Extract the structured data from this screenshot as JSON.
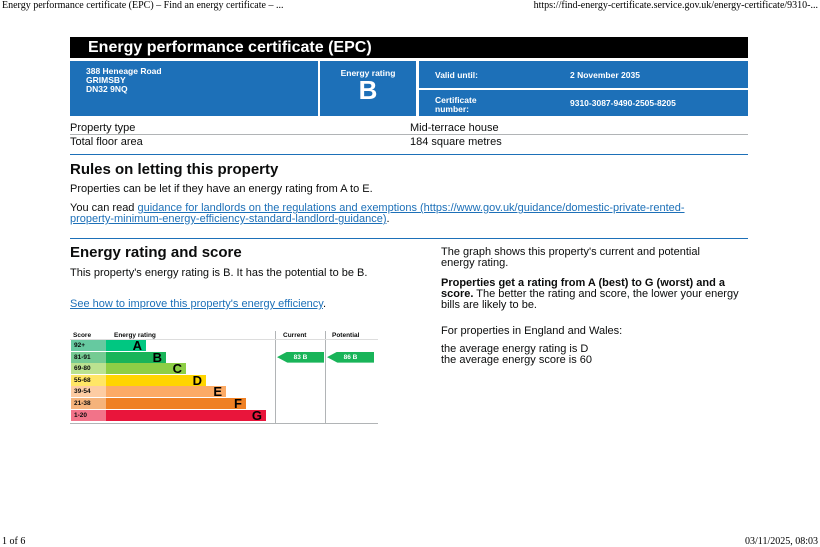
{
  "print_header": {
    "title": "Energy performance certificate (EPC) – Find an energy certificate – ...",
    "url": "https://find-energy-certificate.service.gov.uk/energy-certificate/9310-..."
  },
  "print_footer": {
    "page": "1 of 6",
    "datetime": "03/11/2025, 08:03"
  },
  "title": "Energy performance certificate (EPC)",
  "address": [
    "388 Heneage Road",
    "GRIMSBY",
    "DN32 9NQ"
  ],
  "rating_label": "Energy rating",
  "rating": "B",
  "valid_label": "Valid until:",
  "valid_value": "2 November 2035",
  "cert_label": "Certificate number:",
  "cert_value": "9310-3087-9490-2505-8205",
  "property": [
    {
      "label": "Property type",
      "value": "Mid-terrace house"
    },
    {
      "label": "Total floor area",
      "value": "184 square metres"
    }
  ],
  "letting": {
    "heading": "Rules on letting this property",
    "p1": "Properties can be let if they have an energy rating from A to E.",
    "p2_prefix": "You can read ",
    "p2_link": "guidance for landlords on the regulations and exemptions (https://www.gov.uk/guidance/domestic-private-rented-property-minimum-energy-efficiency-standard-landlord-guidance)",
    "p2_suffix": "."
  },
  "score": {
    "heading": "Energy rating and score",
    "p1": "This property's energy rating is B. It has the potential to be B.",
    "link": "See how to improve this property's energy efficiency",
    "link_suffix": ".",
    "right_p1": "The graph shows this property's current and potential energy rating.",
    "right_bold": "Properties get a rating from A (best) to G (worst) and a score.",
    "right_p2": " The better the rating and score, the lower your energy bills are likely to be.",
    "right_p3": "For properties in England and Wales:",
    "right_p4": "the average energy rating is D",
    "right_p5": "the average energy score is 60"
  },
  "chart": {
    "headers": {
      "score": "Score",
      "rating": "Energy rating",
      "current": "Current",
      "potential": "Potential"
    },
    "bands": [
      {
        "range": "92+",
        "letter": "A",
        "color": "#00c781",
        "light": "#66c9a0"
      },
      {
        "range": "81-91",
        "letter": "B",
        "color": "#19b459",
        "light": "#75cb93"
      },
      {
        "range": "69-80",
        "letter": "C",
        "color": "#8dce46",
        "light": "#bbe290"
      },
      {
        "range": "55-68",
        "letter": "D",
        "color": "#ffd500",
        "light": "#ffe666"
      },
      {
        "range": "39-54",
        "letter": "E",
        "color": "#fcaa65",
        "light": "#fdcca3"
      },
      {
        "range": "21-38",
        "letter": "F",
        "color": "#ef8023",
        "light": "#f5b37b"
      },
      {
        "range": "1-20",
        "letter": "G",
        "color": "#e9153b",
        "light": "#f27389"
      }
    ],
    "current": {
      "score": 83,
      "letter": "B",
      "label": "83  B"
    },
    "potential": {
      "score": 86,
      "letter": "B",
      "label": "86  B"
    }
  }
}
